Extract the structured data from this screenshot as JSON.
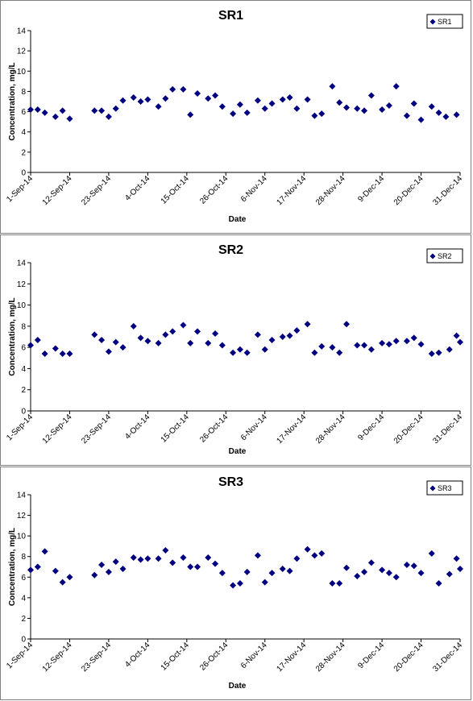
{
  "chart_data": [
    {
      "type": "scatter",
      "title": "SR1",
      "xlabel": "Date",
      "ylabel": "Concentration, mg/L",
      "ylim": [
        0,
        14
      ],
      "yticks": [
        0,
        2,
        4,
        6,
        8,
        10,
        12,
        14
      ],
      "xlim": [
        "2014-09-01",
        "2014-12-31"
      ],
      "xticks": [
        "1-Sep-14",
        "12-Sep-14",
        "23-Sep-14",
        "4-Oct-14",
        "15-Oct-14",
        "26-Oct-14",
        "6-Nov-14",
        "17-Nov-14",
        "28-Nov-14",
        "9-Dec-14",
        "20-Dec-14",
        "31-Dec-14"
      ],
      "legend": "top-right",
      "marker_color": "#000080",
      "series": [
        {
          "name": "SR1",
          "x": [
            "2014-09-01",
            "2014-09-03",
            "2014-09-05",
            "2014-09-08",
            "2014-09-10",
            "2014-09-12",
            "2014-09-19",
            "2014-09-21",
            "2014-09-23",
            "2014-09-25",
            "2014-09-27",
            "2014-09-30",
            "2014-10-02",
            "2014-10-04",
            "2014-10-07",
            "2014-10-09",
            "2014-10-11",
            "2014-10-14",
            "2014-10-16",
            "2014-10-18",
            "2014-10-21",
            "2014-10-23",
            "2014-10-25",
            "2014-10-28",
            "2014-10-30",
            "2014-11-01",
            "2014-11-04",
            "2014-11-06",
            "2014-11-08",
            "2014-11-11",
            "2014-11-13",
            "2014-11-15",
            "2014-11-18",
            "2014-11-20",
            "2014-11-22",
            "2014-11-25",
            "2014-11-27",
            "2014-11-29",
            "2014-12-02",
            "2014-12-04",
            "2014-12-06",
            "2014-12-09",
            "2014-12-11",
            "2014-12-13",
            "2014-12-16",
            "2014-12-18",
            "2014-12-20",
            "2014-12-23",
            "2014-12-25",
            "2014-12-27",
            "2014-12-30"
          ],
          "y": [
            6.2,
            6.2,
            5.9,
            5.5,
            6.1,
            5.3,
            6.1,
            6.1,
            5.5,
            6.3,
            7.1,
            7.4,
            7.0,
            7.2,
            6.5,
            7.3,
            8.2,
            8.2,
            5.7,
            7.8,
            7.3,
            7.6,
            6.5,
            5.8,
            6.7,
            5.9,
            7.1,
            6.3,
            6.8,
            7.2,
            7.4,
            6.3,
            7.2,
            5.6,
            5.8,
            8.5,
            6.9,
            6.4,
            6.3,
            6.1,
            7.6,
            6.2,
            6.6,
            8.5,
            5.6,
            6.8,
            5.2,
            6.5,
            5.9,
            5.5,
            5.7
          ]
        }
      ]
    },
    {
      "type": "scatter",
      "title": "SR2",
      "xlabel": "Date",
      "ylabel": "Concentration, mg/L",
      "ylim": [
        0,
        14
      ],
      "yticks": [
        0,
        2,
        4,
        6,
        8,
        10,
        12,
        14
      ],
      "xlim": [
        "2014-09-01",
        "2014-12-31"
      ],
      "xticks": [
        "1-Sep-14",
        "12-Sep-14",
        "23-Sep-14",
        "4-Oct-14",
        "15-Oct-14",
        "26-Oct-14",
        "6-Nov-14",
        "17-Nov-14",
        "28-Nov-14",
        "9-Dec-14",
        "20-Dec-14",
        "31-Dec-14"
      ],
      "legend": "top-right",
      "marker_color": "#000080",
      "series": [
        {
          "name": "SR2",
          "x": [
            "2014-09-01",
            "2014-09-03",
            "2014-09-05",
            "2014-09-08",
            "2014-09-10",
            "2014-09-12",
            "2014-09-19",
            "2014-09-21",
            "2014-09-23",
            "2014-09-25",
            "2014-09-27",
            "2014-09-30",
            "2014-10-02",
            "2014-10-04",
            "2014-10-07",
            "2014-10-09",
            "2014-10-11",
            "2014-10-14",
            "2014-10-16",
            "2014-10-18",
            "2014-10-21",
            "2014-10-23",
            "2014-10-25",
            "2014-10-28",
            "2014-10-30",
            "2014-11-01",
            "2014-11-04",
            "2014-11-06",
            "2014-11-08",
            "2014-11-11",
            "2014-11-13",
            "2014-11-15",
            "2014-11-18",
            "2014-11-20",
            "2014-11-22",
            "2014-11-25",
            "2014-11-27",
            "2014-11-29",
            "2014-12-02",
            "2014-12-04",
            "2014-12-06",
            "2014-12-09",
            "2014-12-11",
            "2014-12-13",
            "2014-12-16",
            "2014-12-18",
            "2014-12-20",
            "2014-12-23",
            "2014-12-25",
            "2014-12-28",
            "2014-12-30",
            "2014-12-31"
          ],
          "y": [
            6.2,
            6.7,
            5.4,
            5.9,
            5.4,
            5.4,
            7.2,
            6.7,
            5.6,
            6.5,
            6.0,
            8.0,
            6.9,
            6.6,
            6.4,
            7.2,
            7.5,
            8.1,
            6.4,
            7.5,
            6.4,
            7.3,
            6.2,
            5.5,
            5.8,
            5.5,
            7.2,
            5.8,
            6.7,
            7.0,
            7.1,
            7.6,
            8.2,
            5.5,
            6.1,
            6.0,
            5.5,
            8.2,
            6.2,
            6.2,
            5.8,
            6.4,
            6.3,
            6.6,
            6.6,
            6.9,
            6.3,
            5.4,
            5.5,
            5.8,
            7.1,
            6.5
          ]
        }
      ]
    },
    {
      "type": "scatter",
      "title": "SR3",
      "xlabel": "Date",
      "ylabel": "Concentration, mg/L",
      "ylim": [
        0,
        14
      ],
      "yticks": [
        0,
        2,
        4,
        6,
        8,
        10,
        12,
        14
      ],
      "xlim": [
        "2014-09-01",
        "2014-12-31"
      ],
      "xticks": [
        "1-Sep-14",
        "12-Sep-14",
        "23-Sep-14",
        "4-Oct-14",
        "15-Oct-14",
        "26-Oct-14",
        "6-Nov-14",
        "17-Nov-14",
        "28-Nov-14",
        "9-Dec-14",
        "20-Dec-14",
        "31-Dec-14"
      ],
      "legend": "top-right",
      "marker_color": "#000080",
      "series": [
        {
          "name": "SR3",
          "x": [
            "2014-09-01",
            "2014-09-03",
            "2014-09-05",
            "2014-09-08",
            "2014-09-10",
            "2014-09-12",
            "2014-09-19",
            "2014-09-21",
            "2014-09-23",
            "2014-09-25",
            "2014-09-27",
            "2014-09-30",
            "2014-10-02",
            "2014-10-04",
            "2014-10-07",
            "2014-10-09",
            "2014-10-11",
            "2014-10-14",
            "2014-10-16",
            "2014-10-18",
            "2014-10-21",
            "2014-10-23",
            "2014-10-25",
            "2014-10-28",
            "2014-10-30",
            "2014-11-01",
            "2014-11-04",
            "2014-11-06",
            "2014-11-08",
            "2014-11-11",
            "2014-11-13",
            "2014-11-15",
            "2014-11-18",
            "2014-11-20",
            "2014-11-22",
            "2014-11-25",
            "2014-11-27",
            "2014-11-29",
            "2014-12-02",
            "2014-12-04",
            "2014-12-06",
            "2014-12-09",
            "2014-12-11",
            "2014-12-13",
            "2014-12-16",
            "2014-12-18",
            "2014-12-20",
            "2014-12-23",
            "2014-12-25",
            "2014-12-28",
            "2014-12-30",
            "2014-12-31"
          ],
          "y": [
            6.7,
            7.0,
            8.5,
            6.6,
            5.5,
            6.0,
            6.2,
            7.2,
            6.5,
            7.5,
            6.8,
            7.9,
            7.7,
            7.8,
            7.8,
            8.6,
            7.4,
            7.9,
            7.0,
            7.0,
            7.9,
            7.3,
            6.4,
            5.2,
            5.4,
            6.5,
            8.1,
            5.5,
            6.4,
            6.8,
            6.6,
            7.8,
            8.7,
            8.1,
            8.3,
            5.4,
            5.4,
            6.9,
            6.1,
            6.5,
            7.4,
            6.7,
            6.4,
            6.0,
            7.2,
            7.1,
            6.4,
            8.3,
            5.4,
            6.3,
            7.8,
            6.8
          ]
        }
      ]
    }
  ]
}
